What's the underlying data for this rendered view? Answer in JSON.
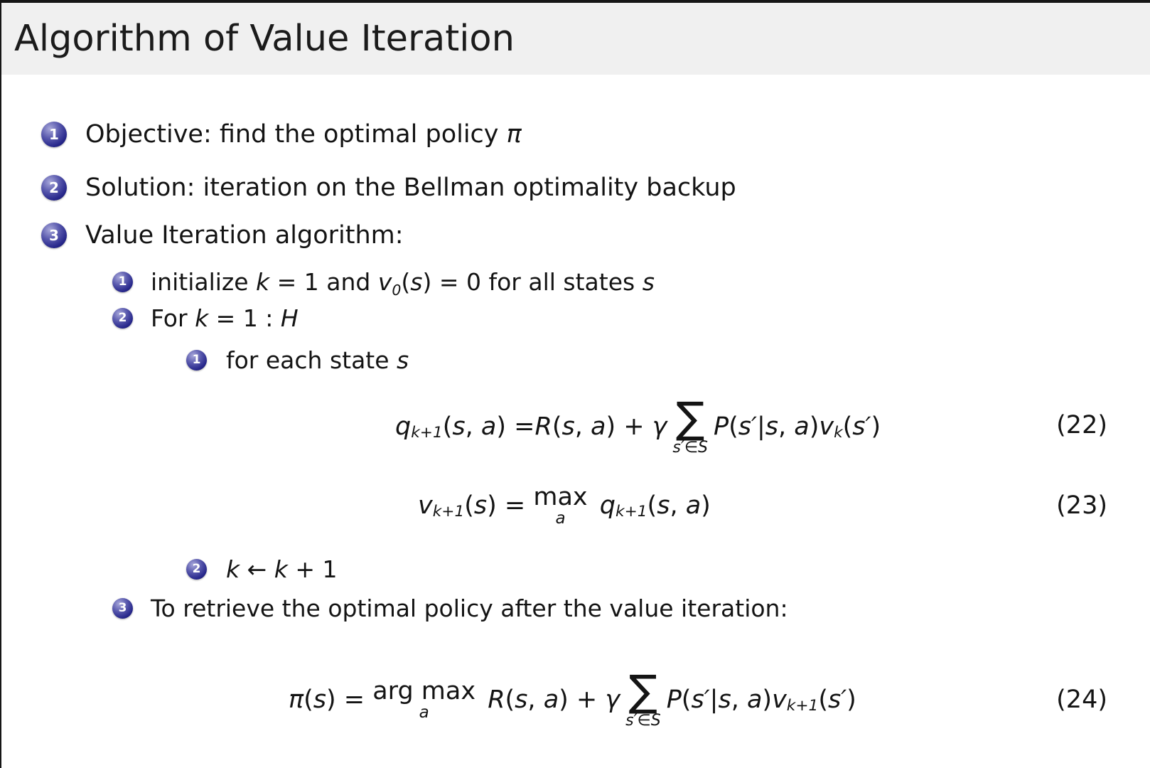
{
  "slide": {
    "title": "Algorithm of Value Iteration"
  },
  "items": {
    "l1_1": {
      "num": "1",
      "tokens": [
        {
          "t": "Objective: find the optimal policy "
        },
        {
          "i": "π"
        }
      ]
    },
    "l1_2": {
      "num": "2",
      "tokens": [
        {
          "t": "Solution: iteration on the Bellman optimality backup"
        }
      ]
    },
    "l1_3": {
      "num": "3",
      "tokens": [
        {
          "t": "Value Iteration algorithm:"
        }
      ]
    },
    "l2_1": {
      "num": "1",
      "tokens": [
        {
          "t": "initialize "
        },
        {
          "i": "k"
        },
        {
          "t": " = 1 and "
        },
        {
          "i": "v"
        },
        {
          "sub": "0"
        },
        {
          "t": "("
        },
        {
          "i": "s"
        },
        {
          "t": ") = 0 for all states "
        },
        {
          "i": "s"
        }
      ]
    },
    "l2_2": {
      "num": "2",
      "tokens": [
        {
          "t": "For "
        },
        {
          "i": "k"
        },
        {
          "t": " = 1 : "
        },
        {
          "i": "H"
        }
      ]
    },
    "l3_1": {
      "num": "1",
      "tokens": [
        {
          "t": "for each state "
        },
        {
          "i": "s"
        }
      ]
    },
    "l3_2": {
      "num": "2",
      "tokens": [
        {
          "i": "k"
        },
        {
          "t": " ← "
        },
        {
          "i": "k"
        },
        {
          "t": " + 1"
        }
      ]
    },
    "l2_3": {
      "num": "3",
      "tokens": [
        {
          "t": "To retrieve the optimal policy after the value iteration:"
        }
      ]
    }
  },
  "equations": {
    "eq22": {
      "number": "(22)",
      "tokens": [
        {
          "i": "q"
        },
        {
          "sub": "k+1"
        },
        {
          "t": "("
        },
        {
          "i": "s"
        },
        {
          "t": ", "
        },
        {
          "i": "a"
        },
        {
          "t": ") ="
        },
        {
          "i": "R"
        },
        {
          "t": "("
        },
        {
          "i": "s"
        },
        {
          "t": ", "
        },
        {
          "i": "a"
        },
        {
          "t": ") + "
        },
        {
          "i": "γ"
        },
        {
          "sum": "s′∈S"
        },
        {
          "i": "P"
        },
        {
          "t": "("
        },
        {
          "i": "s′"
        },
        {
          "t": "|"
        },
        {
          "i": "s"
        },
        {
          "t": ", "
        },
        {
          "i": "a"
        },
        {
          "t": ")"
        },
        {
          "i": "v"
        },
        {
          "sub": "k"
        },
        {
          "t": "("
        },
        {
          "i": "s′"
        },
        {
          "t": ")"
        }
      ]
    },
    "eq23": {
      "number": "(23)",
      "tokens": [
        {
          "i": "v"
        },
        {
          "sub": "k+1"
        },
        {
          "t": "("
        },
        {
          "i": "s"
        },
        {
          "t": ") = "
        },
        {
          "stack": [
            "max",
            "a"
          ]
        },
        {
          "t": " "
        },
        {
          "i": "q"
        },
        {
          "sub": "k+1"
        },
        {
          "t": "("
        },
        {
          "i": "s"
        },
        {
          "t": ", "
        },
        {
          "i": "a"
        },
        {
          "t": ")"
        }
      ]
    },
    "eq24": {
      "number": "(24)",
      "tokens": [
        {
          "i": "π"
        },
        {
          "t": "("
        },
        {
          "i": "s"
        },
        {
          "t": ") = "
        },
        {
          "stack": [
            "arg max",
            "a"
          ]
        },
        {
          "t": " "
        },
        {
          "i": "R"
        },
        {
          "t": "("
        },
        {
          "i": "s"
        },
        {
          "t": ", "
        },
        {
          "i": "a"
        },
        {
          "t": ") + "
        },
        {
          "i": "γ"
        },
        {
          "sum": "s′∈S"
        },
        {
          "i": "P"
        },
        {
          "t": "("
        },
        {
          "i": "s′"
        },
        {
          "t": "|"
        },
        {
          "i": "s"
        },
        {
          "t": ", "
        },
        {
          "i": "a"
        },
        {
          "t": ")"
        },
        {
          "i": "v"
        },
        {
          "sub": "k+1"
        },
        {
          "t": "("
        },
        {
          "i": "s′"
        },
        {
          "t": ")"
        }
      ]
    }
  },
  "colors": {
    "title_band": "#f0f0f0",
    "text": "#141414",
    "ball_dark": "#101052",
    "ball_mid": "#26268a",
    "ball_highlight": "#a8a8da",
    "edge": "#161616"
  }
}
